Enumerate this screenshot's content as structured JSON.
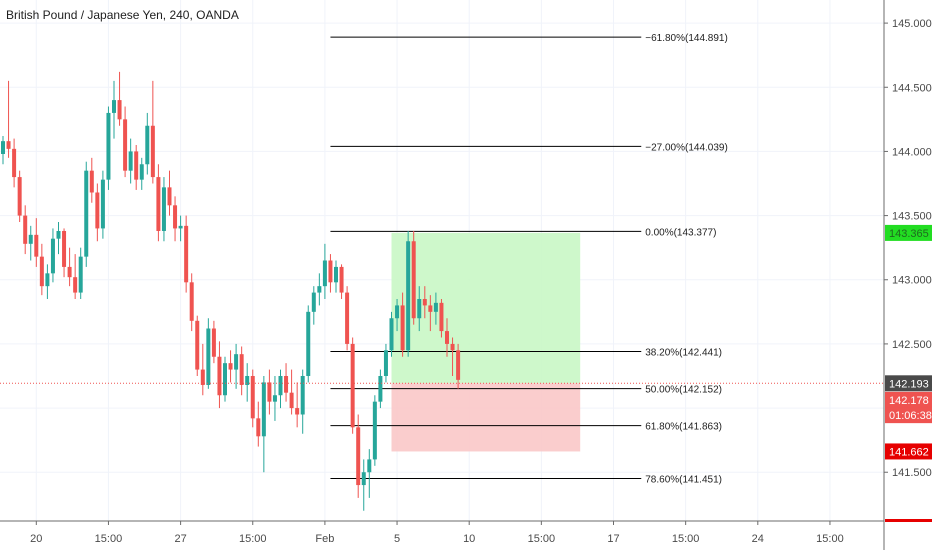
{
  "chart_data": {
    "type": "candlestick",
    "title": "British Pound / Japanese Yen, 240, OANDA",
    "ylim": [
      141.12,
      145.18
    ],
    "y_ticks": [
      {
        "value": 145.0,
        "label": "145.000"
      },
      {
        "value": 144.5,
        "label": "144.500"
      },
      {
        "value": 144.0,
        "label": "144.000"
      },
      {
        "value": 143.5,
        "label": "143.500"
      },
      {
        "value": 143.0,
        "label": "143.000"
      },
      {
        "value": 142.5,
        "label": "142.500"
      },
      {
        "value": 141.5,
        "label": "141.500"
      }
    ],
    "x_ticks": [
      {
        "index": 6,
        "label": "20"
      },
      {
        "index": 19,
        "label": "15:00"
      },
      {
        "index": 32,
        "label": "27"
      },
      {
        "index": 45,
        "label": "15:00"
      },
      {
        "index": 58,
        "label": "Feb"
      },
      {
        "index": 71,
        "label": "5"
      },
      {
        "index": 84,
        "label": "10"
      },
      {
        "index": 97,
        "label": "15:00"
      },
      {
        "index": 110,
        "label": "17"
      },
      {
        "index": 123,
        "label": "15:00"
      },
      {
        "index": 136,
        "label": "24"
      },
      {
        "index": 149,
        "label": "15:00"
      }
    ],
    "up_color": "#26a69a",
    "down_color": "#ef5350",
    "candles": [
      [
        143.98,
        144.12,
        143.9,
        144.08
      ],
      [
        144.08,
        144.55,
        143.95,
        144.02
      ],
      [
        144.02,
        144.1,
        143.72,
        143.8
      ],
      [
        143.8,
        143.85,
        143.45,
        143.5
      ],
      [
        143.5,
        143.58,
        143.2,
        143.28
      ],
      [
        143.28,
        143.42,
        143.15,
        143.35
      ],
      [
        143.35,
        143.48,
        143.1,
        143.18
      ],
      [
        143.18,
        143.28,
        142.88,
        142.95
      ],
      [
        142.95,
        143.12,
        142.85,
        143.05
      ],
      [
        143.05,
        143.4,
        142.98,
        143.32
      ],
      [
        143.32,
        143.45,
        143.2,
        143.38
      ],
      [
        143.38,
        143.4,
        143.02,
        143.1
      ],
      [
        143.1,
        143.25,
        142.95,
        143.02
      ],
      [
        143.02,
        143.2,
        142.85,
        142.9
      ],
      [
        142.9,
        143.25,
        142.85,
        143.18
      ],
      [
        143.18,
        143.92,
        143.1,
        143.85
      ],
      [
        143.85,
        143.95,
        143.6,
        143.68
      ],
      [
        143.68,
        143.75,
        143.3,
        143.4
      ],
      [
        143.4,
        143.85,
        143.32,
        143.78
      ],
      [
        143.78,
        144.35,
        143.7,
        144.3
      ],
      [
        144.3,
        144.55,
        144.1,
        144.4
      ],
      [
        144.4,
        144.62,
        144.2,
        144.25
      ],
      [
        144.25,
        144.35,
        143.8,
        143.85
      ],
      [
        143.85,
        144.1,
        143.75,
        144.0
      ],
      [
        144.0,
        144.05,
        143.7,
        143.78
      ],
      [
        143.78,
        143.95,
        143.7,
        143.9
      ],
      [
        143.9,
        144.3,
        143.82,
        144.2
      ],
      [
        144.2,
        144.55,
        143.75,
        143.8
      ],
      [
        143.8,
        143.9,
        143.3,
        143.38
      ],
      [
        143.38,
        143.8,
        143.3,
        143.72
      ],
      [
        143.72,
        143.85,
        143.5,
        143.58
      ],
      [
        143.58,
        143.65,
        143.3,
        143.4
      ],
      [
        143.4,
        143.5,
        143.3,
        143.42
      ],
      [
        143.42,
        143.5,
        142.9,
        142.98
      ],
      [
        142.98,
        143.05,
        142.6,
        142.68
      ],
      [
        142.68,
        142.72,
        142.25,
        142.3
      ],
      [
        142.3,
        142.5,
        142.1,
        142.18
      ],
      [
        142.18,
        142.7,
        142.15,
        142.62
      ],
      [
        142.62,
        142.68,
        142.35,
        142.4
      ],
      [
        142.4,
        142.52,
        142.0,
        142.1
      ],
      [
        142.1,
        142.4,
        142.05,
        142.35
      ],
      [
        142.35,
        142.45,
        142.2,
        142.3
      ],
      [
        142.3,
        142.5,
        142.15,
        142.42
      ],
      [
        142.42,
        142.48,
        142.1,
        142.18
      ],
      [
        142.18,
        142.35,
        142.05,
        142.25
      ],
      [
        142.25,
        142.3,
        141.85,
        141.92
      ],
      [
        141.92,
        142.05,
        141.7,
        141.78
      ],
      [
        141.78,
        142.25,
        141.5,
        142.2
      ],
      [
        142.2,
        142.3,
        141.95,
        142.05
      ],
      [
        142.05,
        142.25,
        141.9,
        142.1
      ],
      [
        142.1,
        142.3,
        142.0,
        142.25
      ],
      [
        142.25,
        142.35,
        142.05,
        142.12
      ],
      [
        142.12,
        142.3,
        141.95,
        142.0
      ],
      [
        142.0,
        142.2,
        141.85,
        141.95
      ],
      [
        141.95,
        142.3,
        141.8,
        142.25
      ],
      [
        142.25,
        142.8,
        142.2,
        142.75
      ],
      [
        142.75,
        142.95,
        142.65,
        142.9
      ],
      [
        142.9,
        143.05,
        142.8,
        142.95
      ],
      [
        142.95,
        143.28,
        142.85,
        143.15
      ],
      [
        143.15,
        143.2,
        142.9,
        142.98
      ],
      [
        142.98,
        143.15,
        142.9,
        143.1
      ],
      [
        143.1,
        143.12,
        142.85,
        142.9
      ],
      [
        142.9,
        142.95,
        142.45,
        142.5
      ],
      [
        142.5,
        142.55,
        141.8,
        141.85
      ],
      [
        141.85,
        141.95,
        141.3,
        141.4
      ],
      [
        141.4,
        141.6,
        141.2,
        141.5
      ],
      [
        141.5,
        141.68,
        141.3,
        141.6
      ],
      [
        141.6,
        142.1,
        141.55,
        142.05
      ],
      [
        142.05,
        142.3,
        142.0,
        142.25
      ],
      [
        142.25,
        142.5,
        142.2,
        142.45
      ],
      [
        142.45,
        142.75,
        142.4,
        142.7
      ],
      [
        142.7,
        142.85,
        142.6,
        142.8
      ],
      [
        142.8,
        142.9,
        142.4,
        142.45
      ],
      [
        142.45,
        143.38,
        142.4,
        143.3
      ],
      [
        143.3,
        143.38,
        142.65,
        142.7
      ],
      [
        142.7,
        142.95,
        142.6,
        142.85
      ],
      [
        142.85,
        142.95,
        142.7,
        142.8
      ],
      [
        142.8,
        142.88,
        142.6,
        142.75
      ],
      [
        142.75,
        142.9,
        142.65,
        142.82
      ],
      [
        142.82,
        142.85,
        142.55,
        142.6
      ],
      [
        142.6,
        142.7,
        142.4,
        142.5
      ],
      [
        142.5,
        142.55,
        142.25,
        142.45
      ],
      [
        142.45,
        142.5,
        142.15,
        142.22
      ]
    ],
    "fib_levels": [
      {
        "ratio": -0.618,
        "value": 144.891,
        "label": "−61.80%(144.891)"
      },
      {
        "ratio": -0.27,
        "value": 144.039,
        "label": "−27.00%(144.039)"
      },
      {
        "ratio": 0,
        "value": 143.377,
        "label": "0.00%(143.377)"
      },
      {
        "ratio": 0.382,
        "value": 142.441,
        "label": "38.20%(142.441)"
      },
      {
        "ratio": 0.5,
        "value": 142.152,
        "label": "50.00%(142.152)"
      },
      {
        "ratio": 0.618,
        "value": 141.863,
        "label": "61.80%(141.863)"
      },
      {
        "ratio": 0.786,
        "value": 141.451,
        "label": "78.60%(141.451)"
      }
    ],
    "fib_start_index": 59,
    "fib_end_index": 115,
    "position": {
      "entry": 142.193,
      "target": 143.365,
      "stop": 141.662,
      "start_index": 70,
      "end_index": 104
    },
    "current_price": 142.193,
    "price_tags": [
      {
        "value": 143.365,
        "label": "143.365",
        "bg": "#22dd22",
        "fg": "#1f6b1f"
      },
      {
        "value": 142.193,
        "label": "142.193",
        "bg": "#4a4a4a",
        "fg": "#ffffff"
      },
      {
        "value": 142.064,
        "label": "142.178",
        "bg": "#ef5350",
        "fg": "#ffffff"
      },
      {
        "value": 141.945,
        "label": "01:06:38",
        "bg": "#ef5350",
        "fg": "#ffffff"
      },
      {
        "value": 141.662,
        "label": "141.662",
        "bg": "#e60000",
        "fg": "#ffffff"
      }
    ]
  }
}
